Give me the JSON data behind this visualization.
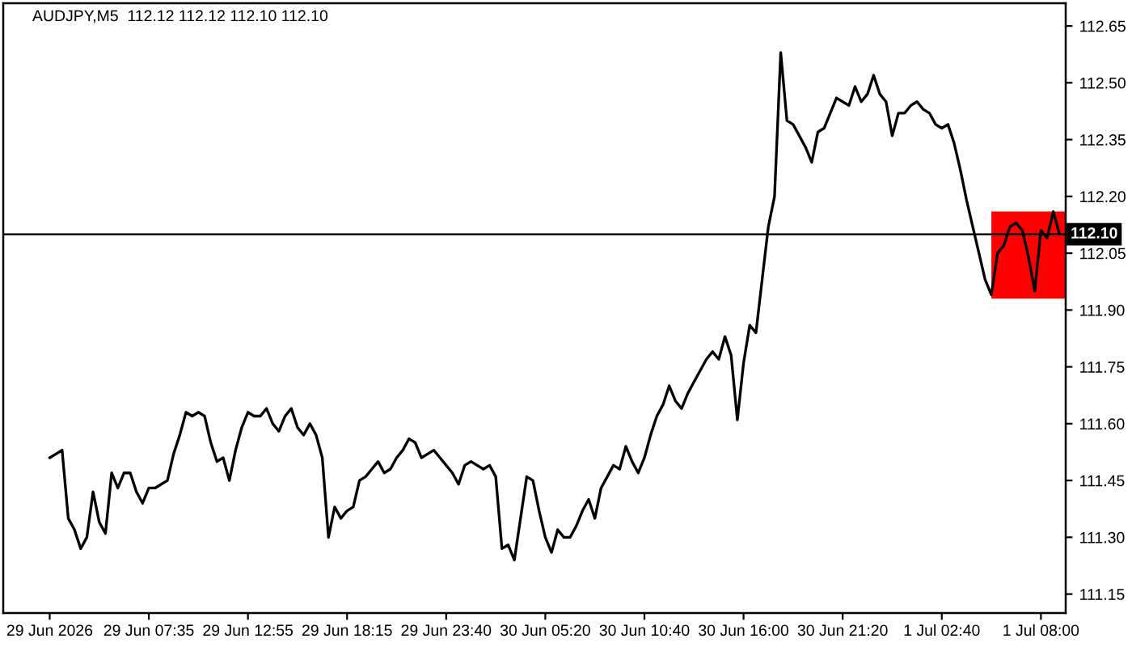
{
  "chart_data": {
    "type": "line",
    "title": "AUDJPY,M5  112.12 112.12 112.10 112.10",
    "categories": [
      "29 Jun 2026",
      null,
      null,
      null,
      null,
      null,
      null,
      null,
      null,
      null,
      null,
      null,
      null,
      null,
      null,
      null,
      "29 Jun 07:35",
      null,
      null,
      null,
      null,
      null,
      null,
      null,
      null,
      null,
      null,
      null,
      null,
      null,
      null,
      null,
      "29 Jun 12:55",
      null,
      null,
      null,
      null,
      null,
      null,
      null,
      null,
      null,
      null,
      null,
      null,
      null,
      null,
      null,
      "29 Jun 18:15",
      null,
      null,
      null,
      null,
      null,
      null,
      null,
      null,
      null,
      null,
      null,
      null,
      null,
      null,
      null,
      "29 Jun 23:40",
      null,
      null,
      null,
      null,
      null,
      null,
      null,
      null,
      null,
      null,
      null,
      null,
      null,
      null,
      null,
      "30 Jun 05:20",
      null,
      null,
      null,
      null,
      null,
      null,
      null,
      null,
      null,
      null,
      null,
      null,
      null,
      null,
      null,
      "30 Jun 10:40",
      null,
      null,
      null,
      null,
      null,
      null,
      null,
      null,
      null,
      null,
      null,
      null,
      null,
      null,
      null,
      "30 Jun 16:00",
      null,
      null,
      null,
      null,
      null,
      null,
      null,
      null,
      null,
      null,
      null,
      null,
      null,
      null,
      null,
      "30 Jun 21:20",
      null,
      null,
      null,
      null,
      null,
      null,
      null,
      null,
      null,
      null,
      null,
      null,
      null,
      null,
      null,
      "1 Jul 02:40",
      null,
      null,
      null,
      null,
      null,
      null,
      null,
      null,
      null,
      null,
      null,
      null,
      null,
      null,
      null,
      "1 Jul 08:00",
      null,
      null,
      null,
      null
    ],
    "series": [
      {
        "type": "area",
        "color": "#ff0000",
        "values": [
          null,
          null,
          null,
          null,
          null,
          null,
          null,
          null,
          null,
          null,
          null,
          null,
          null,
          null,
          null,
          null,
          null,
          null,
          null,
          null,
          null,
          null,
          null,
          null,
          null,
          null,
          null,
          null,
          null,
          null,
          null,
          null,
          null,
          null,
          null,
          null,
          null,
          null,
          null,
          null,
          null,
          null,
          null,
          null,
          null,
          null,
          null,
          null,
          null,
          null,
          null,
          null,
          null,
          null,
          null,
          null,
          null,
          null,
          null,
          null,
          null,
          null,
          null,
          null,
          null,
          null,
          null,
          null,
          null,
          null,
          null,
          null,
          null,
          null,
          null,
          null,
          null,
          null,
          null,
          null,
          null,
          null,
          null,
          null,
          null,
          null,
          null,
          null,
          null,
          null,
          null,
          null,
          null,
          null,
          null,
          null,
          null,
          null,
          null,
          null,
          null,
          null,
          null,
          null,
          null,
          null,
          null,
          null,
          null,
          null,
          null,
          null,
          null,
          null,
          null,
          null,
          null,
          null,
          null,
          null,
          null,
          null,
          null,
          null,
          null,
          null,
          null,
          null,
          null,
          null,
          null,
          null,
          null,
          null,
          null,
          null,
          null,
          null,
          null,
          null,
          null,
          null,
          null,
          null,
          null,
          null,
          null,
          null,
          null,
          null,
          null,
          null,
          null,
          null,
          null,
          null,
          null,
          null,
          null,
          null,
          null,
          null,
          null,
          null,
          null
        ],
        "upper": [
          null,
          null,
          null,
          null,
          null,
          null,
          null,
          null,
          null,
          null,
          null,
          null,
          null,
          null,
          null,
          null,
          null,
          null,
          null,
          null,
          null,
          null,
          null,
          null,
          null,
          null,
          null,
          null,
          null,
          null,
          null,
          null,
          null,
          null,
          null,
          null,
          null,
          null,
          null,
          null,
          null,
          null,
          null,
          null,
          null,
          null,
          null,
          null,
          null,
          null,
          null,
          null,
          null,
          null,
          null,
          null,
          null,
          null,
          null,
          null,
          null,
          null,
          null,
          null,
          null,
          null,
          null,
          null,
          null,
          null,
          null,
          null,
          null,
          null,
          null,
          null,
          null,
          null,
          null,
          null,
          null,
          null,
          null,
          null,
          null,
          null,
          null,
          null,
          null,
          null,
          null,
          null,
          null,
          null,
          null,
          null,
          null,
          null,
          null,
          null,
          null,
          null,
          null,
          null,
          null,
          null,
          null,
          null,
          null,
          null,
          null,
          null,
          null,
          null,
          null,
          null,
          null,
          null,
          null,
          null,
          null,
          null,
          null,
          null,
          null,
          null,
          null,
          null,
          null,
          null,
          null,
          null,
          null,
          null,
          null,
          null,
          null,
          null,
          null,
          null,
          null,
          null,
          null,
          null,
          null,
          null,
          null,
          null,
          null,
          null,
          null,
          null,
          112.16,
          112.16,
          112.16,
          112.16,
          112.16,
          112.16,
          112.16,
          112.16,
          112.16,
          112.16,
          112.16,
          112.16,
          112.16
        ],
        "lower": [
          null,
          null,
          null,
          null,
          null,
          null,
          null,
          null,
          null,
          null,
          null,
          null,
          null,
          null,
          null,
          null,
          null,
          null,
          null,
          null,
          null,
          null,
          null,
          null,
          null,
          null,
          null,
          null,
          null,
          null,
          null,
          null,
          null,
          null,
          null,
          null,
          null,
          null,
          null,
          null,
          null,
          null,
          null,
          null,
          null,
          null,
          null,
          null,
          null,
          null,
          null,
          null,
          null,
          null,
          null,
          null,
          null,
          null,
          null,
          null,
          null,
          null,
          null,
          null,
          null,
          null,
          null,
          null,
          null,
          null,
          null,
          null,
          null,
          null,
          null,
          null,
          null,
          null,
          null,
          null,
          null,
          null,
          null,
          null,
          null,
          null,
          null,
          null,
          null,
          null,
          null,
          null,
          null,
          null,
          null,
          null,
          null,
          null,
          null,
          null,
          null,
          null,
          null,
          null,
          null,
          null,
          null,
          null,
          null,
          null,
          null,
          null,
          null,
          null,
          null,
          null,
          null,
          null,
          null,
          null,
          null,
          null,
          null,
          null,
          null,
          null,
          null,
          null,
          null,
          null,
          null,
          null,
          null,
          null,
          null,
          null,
          null,
          null,
          null,
          null,
          null,
          null,
          null,
          null,
          null,
          null,
          null,
          null,
          null,
          null,
          null,
          null,
          111.93,
          111.93,
          111.93,
          111.93,
          111.93,
          111.93,
          111.93,
          111.93,
          111.93,
          111.93,
          111.93,
          111.93,
          111.93
        ]
      },
      {
        "color": "#000000",
        "values": [
          111.51,
          111.52,
          111.53,
          111.35,
          111.32,
          111.27,
          111.3,
          111.42,
          111.34,
          111.31,
          111.47,
          111.43,
          111.47,
          111.47,
          111.42,
          111.39,
          111.43,
          111.43,
          111.44,
          111.45,
          111.52,
          111.57,
          111.63,
          111.62,
          111.63,
          111.62,
          111.55,
          111.5,
          111.51,
          111.45,
          111.53,
          111.59,
          111.63,
          111.62,
          111.62,
          111.64,
          111.6,
          111.58,
          111.62,
          111.64,
          111.59,
          111.57,
          111.6,
          111.57,
          111.51,
          111.3,
          111.38,
          111.35,
          111.37,
          111.38,
          111.45,
          111.46,
          111.48,
          111.5,
          111.47,
          111.48,
          111.51,
          111.53,
          111.56,
          111.55,
          111.51,
          111.52,
          111.53,
          111.51,
          111.49,
          111.47,
          111.44,
          111.49,
          111.5,
          111.49,
          111.48,
          111.49,
          111.46,
          111.27,
          111.28,
          111.24,
          111.35,
          111.46,
          111.45,
          111.37,
          111.3,
          111.26,
          111.32,
          111.3,
          111.3,
          111.33,
          111.37,
          111.4,
          111.35,
          111.43,
          111.46,
          111.49,
          111.48,
          111.54,
          111.5,
          111.47,
          111.51,
          111.57,
          111.62,
          111.65,
          111.7,
          111.66,
          111.64,
          111.68,
          111.71,
          111.74,
          111.77,
          111.79,
          111.77,
          111.83,
          111.78,
          111.61,
          111.76,
          111.86,
          111.84,
          111.98,
          112.12,
          112.2,
          112.58,
          112.4,
          112.39,
          112.36,
          112.33,
          112.29,
          112.37,
          112.38,
          112.42,
          112.46,
          112.45,
          112.44,
          112.49,
          112.45,
          112.47,
          112.52,
          112.47,
          112.45,
          112.36,
          112.42,
          112.42,
          112.44,
          112.45,
          112.43,
          112.42,
          112.39,
          112.38,
          112.39,
          112.34,
          112.27,
          112.19,
          112.12,
          112.05,
          111.98,
          111.94,
          112.05,
          112.07,
          112.12,
          112.13,
          112.11,
          112.04,
          111.95,
          112.11,
          112.09,
          112.16,
          112.1,
          null
        ]
      }
    ],
    "ylim": [
      111.1,
      112.71
    ],
    "yticks": [
      111.15,
      {
        "value": 111.3,
        "label": "111.30"
      },
      111.45,
      {
        "value": 111.6,
        "label": "111.60"
      },
      111.75,
      {
        "value": 111.9,
        "label": "111.90"
      },
      112.05,
      {
        "value": 112.2,
        "label": "112.20"
      },
      112.35,
      {
        "value": 112.5,
        "label": "112.50"
      },
      112.65
    ],
    "ref_lines": [
      {
        "axis": "y",
        "value": 112.1,
        "label": "112.10",
        "color": "#000000"
      }
    ]
  }
}
